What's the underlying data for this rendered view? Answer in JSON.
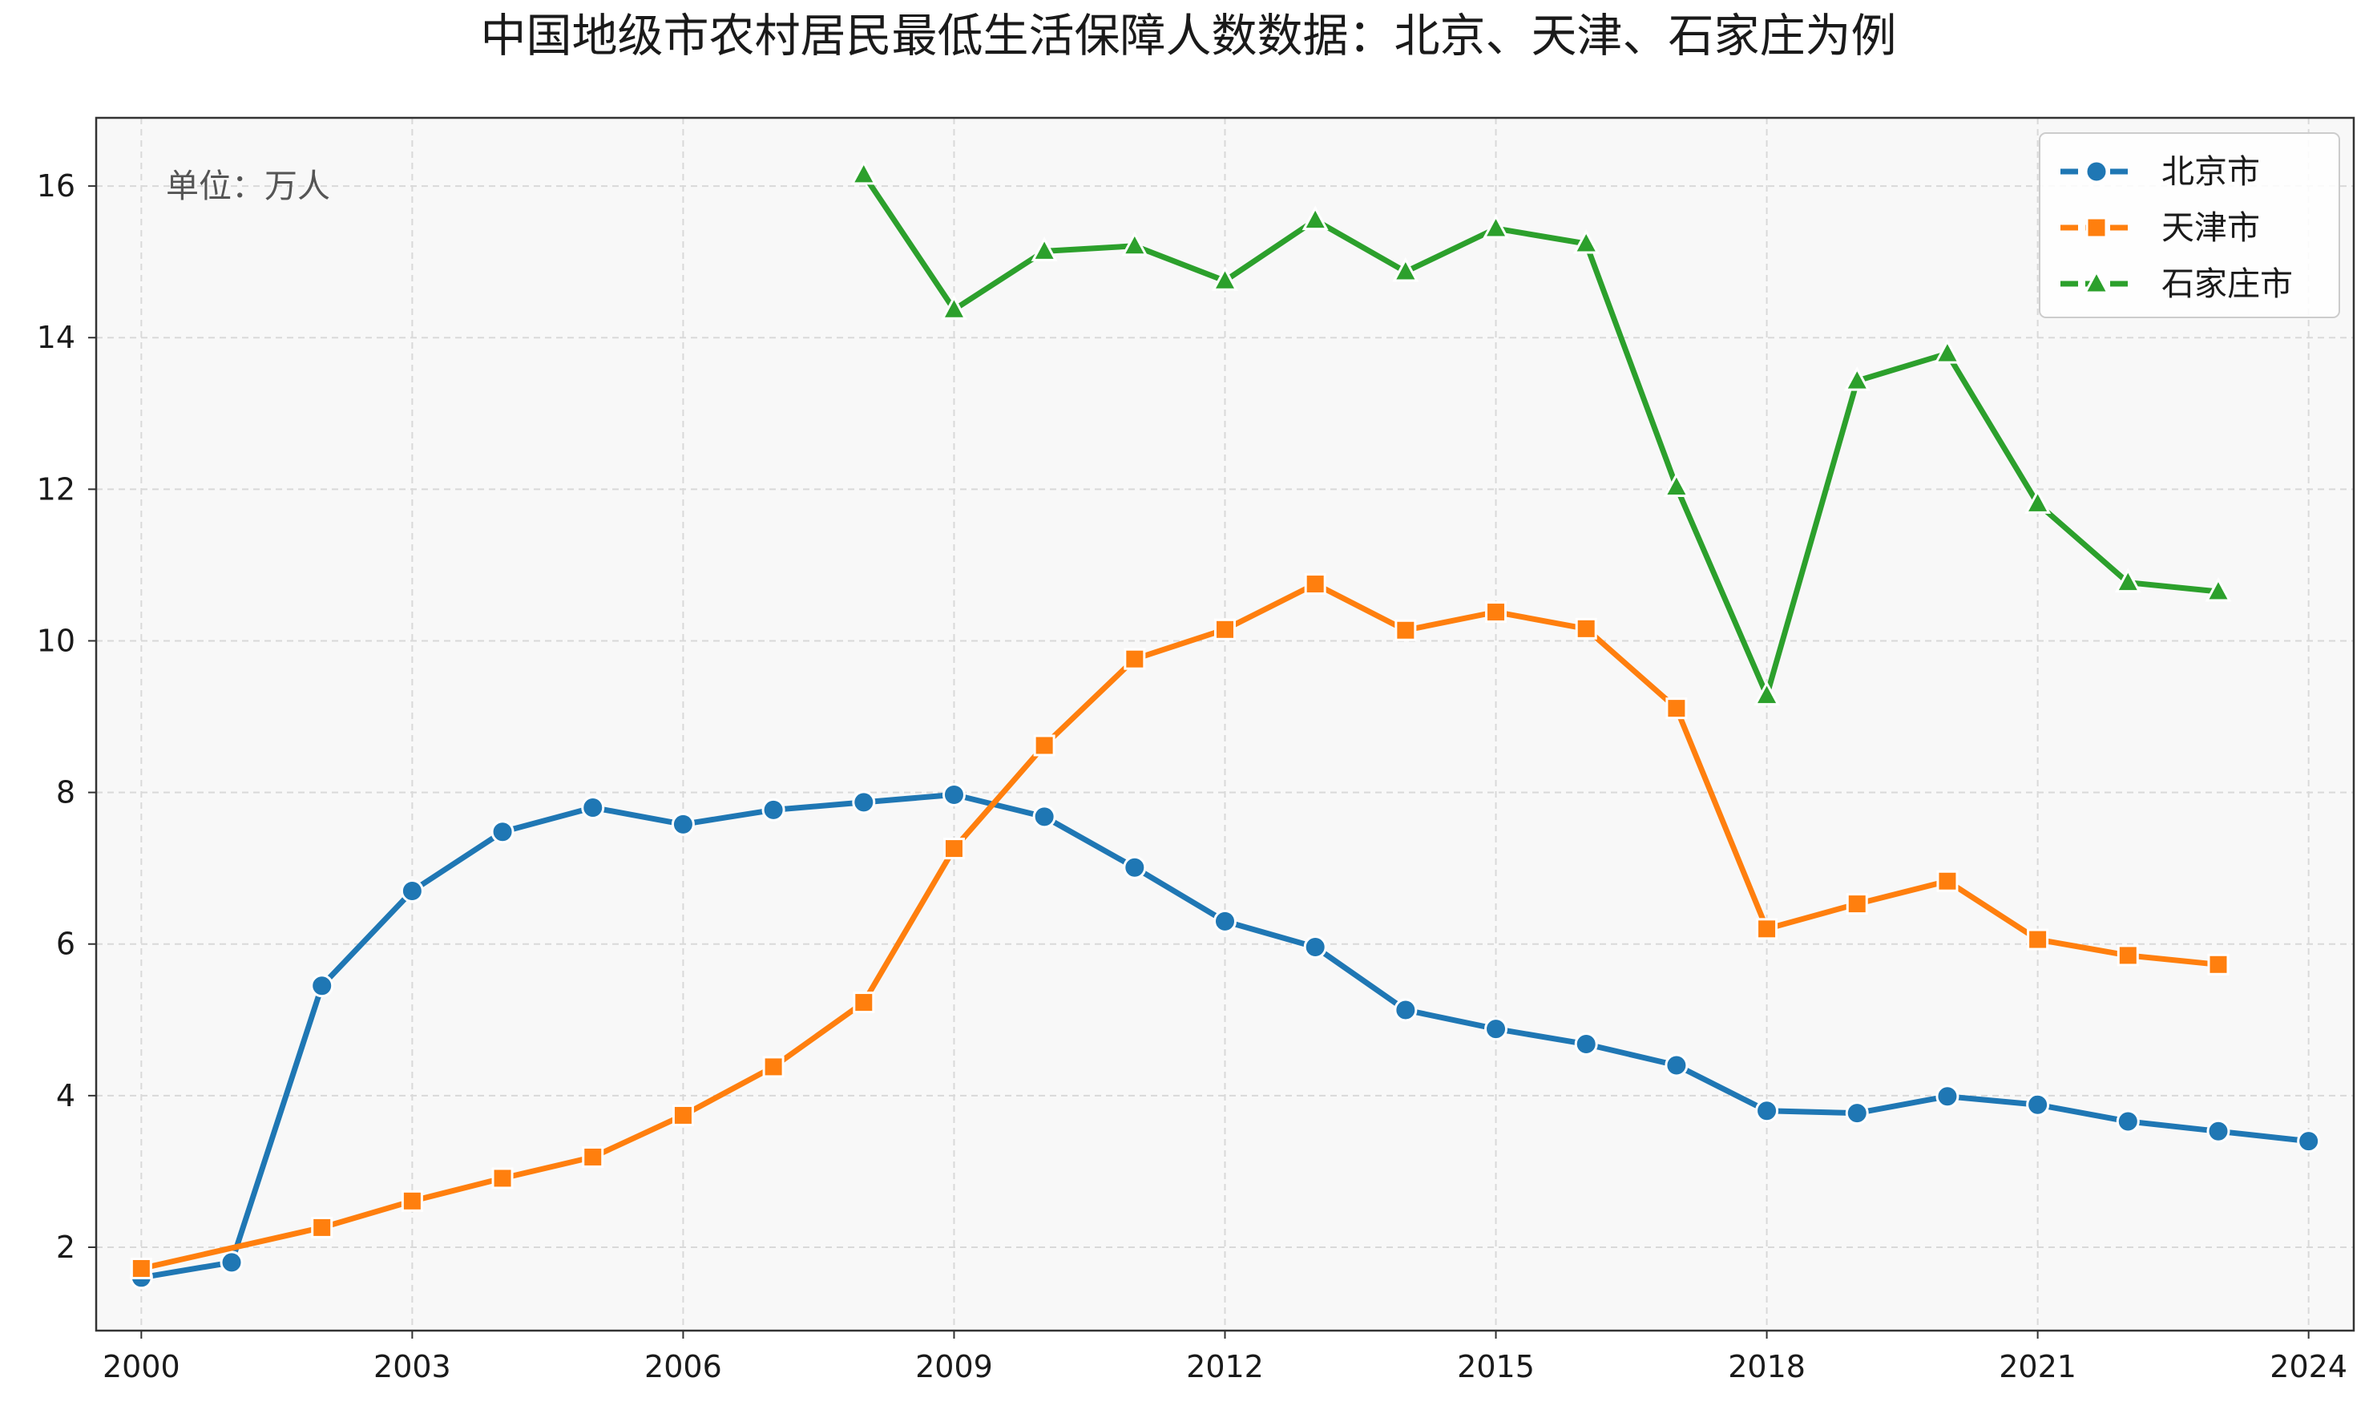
{
  "chart_data": {
    "type": "line",
    "title": "中国地级市农村居民最低生活保障人数数据：北京、天津、石家庄为例",
    "annotation": "单位：万人",
    "xlabel": "",
    "ylabel": "",
    "xlim": [
      1999.5,
      2024.5
    ],
    "ylim": [
      0.9,
      16.9
    ],
    "x_ticks": [
      2000,
      2003,
      2006,
      2009,
      2012,
      2015,
      2018,
      2021,
      2024
    ],
    "y_ticks": [
      2,
      4,
      6,
      8,
      10,
      12,
      14,
      16
    ],
    "grid": true,
    "legend_position": "top-right",
    "series": [
      {
        "name": "北京市",
        "color": "#1f77b4",
        "marker": "circle",
        "x": [
          2000,
          2001,
          2002,
          2003,
          2004,
          2005,
          2006,
          2007,
          2008,
          2009,
          2010,
          2011,
          2012,
          2013,
          2014,
          2015,
          2016,
          2017,
          2018,
          2019,
          2020,
          2021,
          2022,
          2023,
          2024
        ],
        "values": [
          1.6,
          1.8,
          5.45,
          6.7,
          7.48,
          7.8,
          7.58,
          7.77,
          7.87,
          7.97,
          7.68,
          7.01,
          6.3,
          5.96,
          5.13,
          4.88,
          4.68,
          4.4,
          3.8,
          3.77,
          3.99,
          3.88,
          3.66,
          3.53,
          3.4
        ]
      },
      {
        "name": "天津市",
        "color": "#ff7f0e",
        "marker": "square",
        "x": [
          2000,
          2002,
          2003,
          2004,
          2005,
          2006,
          2007,
          2008,
          2009,
          2010,
          2011,
          2012,
          2013,
          2014,
          2015,
          2016,
          2017,
          2018,
          2019,
          2020,
          2021,
          2022,
          2023
        ],
        "values": [
          1.72,
          2.26,
          2.61,
          2.91,
          3.19,
          3.74,
          4.38,
          5.23,
          7.26,
          8.62,
          9.76,
          10.15,
          10.75,
          10.14,
          10.38,
          10.16,
          9.11,
          6.2,
          6.53,
          6.83,
          6.06,
          5.85,
          5.73
        ]
      },
      {
        "name": "石家庄市",
        "color": "#2ca02c",
        "marker": "triangle",
        "x": [
          2008,
          2009,
          2010,
          2011,
          2012,
          2013,
          2014,
          2015,
          2016,
          2017,
          2018,
          2019,
          2020,
          2021,
          2022,
          2023
        ],
        "values": [
          16.15,
          14.37,
          15.14,
          15.21,
          14.75,
          15.55,
          14.87,
          15.44,
          15.24,
          12.03,
          9.28,
          13.43,
          13.79,
          11.81,
          10.77,
          10.65
        ]
      }
    ]
  }
}
